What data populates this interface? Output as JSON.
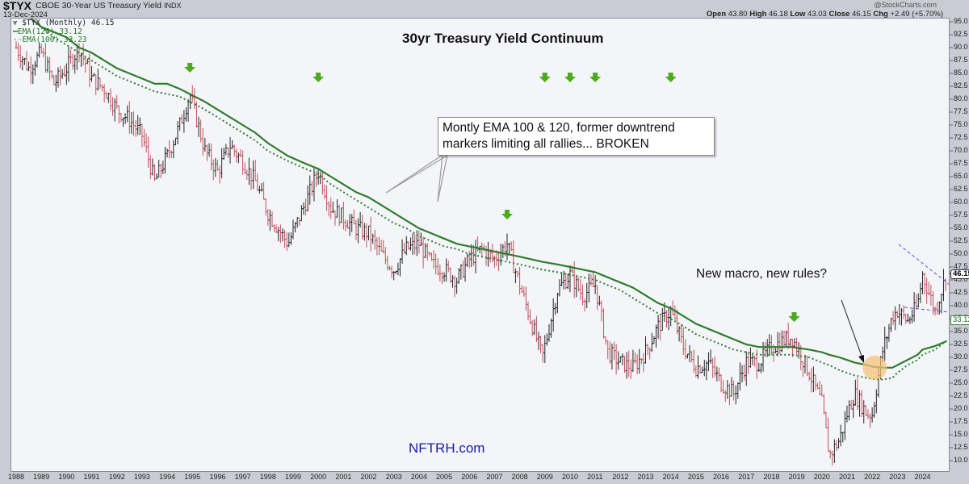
{
  "header": {
    "symbol": "$TYX",
    "description": "CBOE 30-Year US Treasury Yield",
    "exchange": "INDX",
    "date": "13-Dec-2024",
    "copyright": "@StockCharts.com",
    "open_label": "Open",
    "open": "43.80",
    "high_label": "High",
    "high": "46.18",
    "low_label": "Low",
    "low": "43.03",
    "close_label": "Close",
    "close": "46.15",
    "chg_label": "Chg",
    "chg": "+2.49 (+5.70%)"
  },
  "legend": {
    "price": "$TYX (Monthly) 46.15",
    "ema120": "EMA(120) 33.12",
    "ema100": "EMA(100) 33.23"
  },
  "annotations": {
    "title": "30yr Treasury Yield Continuum",
    "callout": "Montly EMA 100 & 120, former downtrend markers limiting all rallies... BROKEN",
    "note": "New macro, new rules?",
    "watermark": "NFTRH.com"
  },
  "price_labels": {
    "last": "46.15",
    "ema": "33.12"
  },
  "colors": {
    "up": "#222222",
    "down": "#c0505a",
    "ema": "#2e7d2e",
    "arrow": "#4caa1e",
    "trend": "#5555cc",
    "circle": "#f3c27a"
  },
  "chart_data": {
    "type": "line",
    "title": "30yr Treasury Yield Continuum",
    "xlabel": "",
    "ylabel": "",
    "ylim": [
      8.0,
      96.0
    ],
    "grid": false,
    "legend_position": "top-left",
    "y_ticks": [
      "95.0",
      "92.5",
      "90.0",
      "87.5",
      "85.0",
      "82.5",
      "80.0",
      "77.5",
      "75.0",
      "72.5",
      "70.0",
      "67.5",
      "65.0",
      "62.5",
      "60.0",
      "57.5",
      "55.0",
      "52.5",
      "50.0",
      "47.5",
      "45.0",
      "42.5",
      "40.0",
      "37.5",
      "35.0",
      "32.5",
      "30.0",
      "27.5",
      "25.0",
      "22.5",
      "20.0",
      "17.5",
      "15.0",
      "12.5",
      "10.0"
    ],
    "x_ticks": [
      "1988",
      "1989",
      "1990",
      "1991",
      "1992",
      "1993",
      "1994",
      "1995",
      "1996",
      "1997",
      "1998",
      "1999",
      "2000",
      "2001",
      "2002",
      "2003",
      "2004",
      "2005",
      "2006",
      "2007",
      "2008",
      "2009",
      "2010",
      "2011",
      "2012",
      "2013",
      "2014",
      "2015",
      "2016",
      "2017",
      "2018",
      "2019",
      "2020",
      "2021",
      "2022",
      "2023",
      "2024"
    ],
    "x": [
      1988.0,
      1988.5,
      1989.0,
      1989.5,
      1990.0,
      1990.5,
      1991.0,
      1991.5,
      1992.0,
      1992.5,
      1993.0,
      1993.5,
      1994.0,
      1994.5,
      1994.9,
      1995.5,
      1996.0,
      1996.5,
      1997.0,
      1997.5,
      1998.0,
      1998.8,
      1999.5,
      2000.0,
      2000.5,
      2001.0,
      2001.5,
      2002.0,
      2002.5,
      2003.0,
      2003.5,
      2004.0,
      2004.5,
      2005.0,
      2005.5,
      2006.0,
      2006.5,
      2007.0,
      2007.5,
      2008.0,
      2008.9,
      2009.5,
      2010.0,
      2010.5,
      2011.0,
      2011.5,
      2012.0,
      2012.5,
      2013.0,
      2013.5,
      2014.0,
      2014.5,
      2015.0,
      2015.5,
      2016.0,
      2016.5,
      2017.0,
      2017.5,
      2018.0,
      2018.8,
      2019.5,
      2020.0,
      2020.3,
      2020.7,
      2021.0,
      2021.3,
      2021.8,
      2022.0,
      2022.4,
      2022.8,
      2023.0,
      2023.4,
      2023.8,
      2024.0,
      2024.5,
      2024.95
    ],
    "series": [
      {
        "name": "$TYX (Monthly)",
        "values": [
          90,
          86,
          89,
          83,
          86,
          90,
          84,
          82,
          78,
          76,
          73,
          64,
          69,
          75,
          81,
          70,
          66,
          71,
          68,
          64,
          58,
          52,
          60,
          66,
          59,
          57,
          55,
          54,
          50,
          47,
          51,
          52,
          48,
          47,
          45,
          49,
          51,
          49,
          52,
          44,
          30,
          43,
          46,
          42,
          44,
          31,
          29,
          28,
          31,
          36,
          39,
          32,
          28,
          29,
          25,
          23,
          29,
          29,
          32,
          34,
          27,
          21,
          11,
          14,
          19,
          23,
          19,
          19,
          31,
          38,
          39,
          37,
          40,
          46,
          39,
          46.15
        ]
      },
      {
        "name": "EMA(120)",
        "values": [
          98,
          96,
          94,
          93,
          92,
          90,
          89,
          87.5,
          86,
          85,
          84,
          83,
          83,
          82,
          81,
          79.5,
          78,
          76.5,
          75,
          73.5,
          71.5,
          69,
          67.5,
          66.5,
          65,
          63.5,
          62,
          61,
          59.5,
          58,
          56.5,
          55,
          54,
          53,
          52,
          51.5,
          51,
          50.5,
          50,
          49.5,
          48.5,
          48,
          47.5,
          47,
          46.5,
          45.5,
          44.5,
          43.5,
          42,
          40.5,
          39.5,
          38,
          36.5,
          35.5,
          34.5,
          33.5,
          32.5,
          32,
          32,
          32,
          31.5,
          31,
          30.5,
          30,
          29.5,
          29,
          28.5,
          28.2,
          28,
          28,
          28.5,
          29.5,
          30.5,
          31.5,
          32.2,
          33.12
        ]
      },
      {
        "name": "EMA(100)",
        "values": [
          98,
          96,
          94,
          92,
          90.5,
          89,
          87.5,
          86,
          84.5,
          83.5,
          82.5,
          81.5,
          81,
          80.5,
          79.5,
          78,
          76.5,
          75,
          73.5,
          72,
          70,
          68,
          66.5,
          65.5,
          63.5,
          62,
          60.5,
          59,
          57.5,
          56,
          55,
          53.5,
          52.5,
          51.5,
          51,
          50,
          49.5,
          49,
          48.5,
          48,
          47,
          46.5,
          46,
          45.5,
          45,
          44,
          43,
          41.5,
          40,
          38.5,
          37.5,
          36,
          34.5,
          33.5,
          32.5,
          31.5,
          31,
          30.5,
          30.5,
          30.5,
          30,
          29,
          28.5,
          27.5,
          27,
          26.5,
          26,
          25.8,
          25.7,
          26,
          27,
          28.5,
          29.5,
          30.5,
          31.5,
          33.23
        ]
      }
    ],
    "annotations": [
      "30yr Treasury Yield Continuum",
      "Montly EMA 100 & 120, former downtrend markers limiting all rallies... BROKEN",
      "New macro, new rules?",
      "NFTRH.com"
    ],
    "markers": [
      {
        "type": "down-arrow",
        "x": [
          1994.9,
          2000.0,
          2007.5,
          2009.0,
          2010.0,
          2011.0,
          2014.0,
          2018.9
        ]
      },
      {
        "type": "circle",
        "x": 2022.1,
        "y": 28
      }
    ]
  }
}
